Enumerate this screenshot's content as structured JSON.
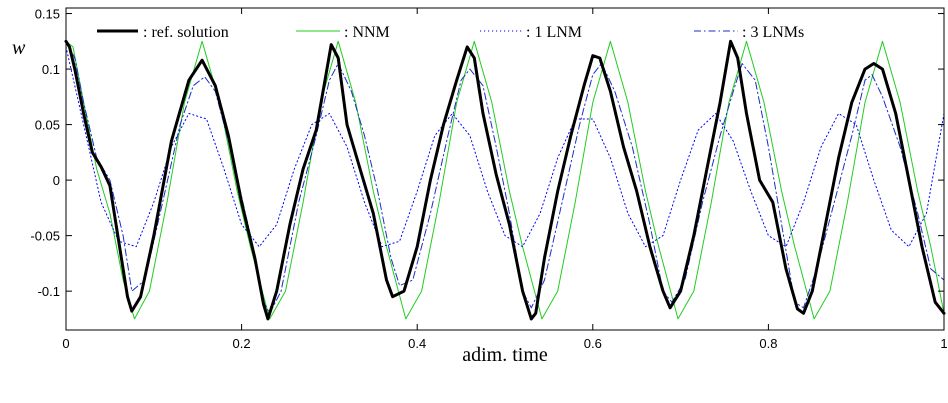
{
  "chart_data": {
    "type": "line",
    "xlabel": "adim. time",
    "ylabel": "w",
    "xlim": [
      0,
      1
    ],
    "ylim": [
      -0.135,
      0.155
    ],
    "x_ticks": [
      "0",
      "0.2",
      "0.4",
      "0.6",
      "0.8",
      "1"
    ],
    "y_ticks": [
      "0.15",
      "0.1",
      "0.05",
      "0",
      "-0.05",
      "-0.1"
    ],
    "grid": false,
    "legend_position": "top",
    "series": [
      {
        "name": ": ref. solution",
        "color": "#000000",
        "style": "solid-thick",
        "x": [
          0,
          0.004,
          0.01,
          0.02,
          0.03,
          0.04,
          0.05,
          0.06,
          0.07,
          0.075,
          0.085,
          0.1,
          0.12,
          0.14,
          0.155,
          0.17,
          0.185,
          0.2,
          0.215,
          0.225,
          0.23,
          0.24,
          0.255,
          0.27,
          0.285,
          0.295,
          0.302,
          0.31,
          0.32,
          0.335,
          0.35,
          0.365,
          0.372,
          0.385,
          0.4,
          0.415,
          0.43,
          0.445,
          0.457,
          0.465,
          0.475,
          0.49,
          0.505,
          0.52,
          0.53,
          0.535,
          0.545,
          0.56,
          0.575,
          0.59,
          0.6,
          0.608,
          0.62,
          0.635,
          0.65,
          0.665,
          0.68,
          0.688,
          0.7,
          0.715,
          0.73,
          0.745,
          0.757,
          0.765,
          0.775,
          0.79,
          0.805,
          0.82,
          0.833,
          0.84,
          0.85,
          0.865,
          0.88,
          0.895,
          0.91,
          0.92,
          0.93,
          0.945,
          0.96,
          0.975,
          0.99,
          1
        ],
        "y": [
          0.125,
          0.12,
          0.1,
          0.06,
          0.025,
          0.012,
          -0.005,
          -0.055,
          -0.105,
          -0.118,
          -0.105,
          -0.05,
          0.035,
          0.09,
          0.108,
          0.085,
          0.04,
          -0.02,
          -0.07,
          -0.112,
          -0.125,
          -0.1,
          -0.04,
          0.01,
          0.045,
          0.09,
          0.122,
          0.11,
          0.05,
          0.01,
          -0.03,
          -0.09,
          -0.105,
          -0.1,
          -0.06,
          0.0,
          0.05,
          0.09,
          0.12,
          0.11,
          0.06,
          0.005,
          -0.04,
          -0.1,
          -0.125,
          -0.12,
          -0.07,
          -0.01,
          0.04,
          0.085,
          0.112,
          0.11,
          0.08,
          0.03,
          -0.01,
          -0.06,
          -0.1,
          -0.115,
          -0.1,
          -0.05,
          0.01,
          0.07,
          0.125,
          0.11,
          0.06,
          0.0,
          -0.02,
          -0.08,
          -0.116,
          -0.12,
          -0.1,
          -0.04,
          0.02,
          0.07,
          0.1,
          0.105,
          0.1,
          0.06,
          0.0,
          -0.06,
          -0.11,
          -0.12
        ]
      },
      {
        "name": ": NNM",
        "color": "#22cc22",
        "style": "solid",
        "x": [
          0,
          0.008,
          0.02,
          0.035,
          0.05,
          0.065,
          0.078,
          0.095,
          0.115,
          0.135,
          0.155,
          0.175,
          0.195,
          0.21,
          0.232,
          0.25,
          0.27,
          0.29,
          0.31,
          0.33,
          0.35,
          0.365,
          0.387,
          0.405,
          0.425,
          0.445,
          0.465,
          0.485,
          0.505,
          0.52,
          0.542,
          0.56,
          0.58,
          0.6,
          0.62,
          0.64,
          0.66,
          0.675,
          0.697,
          0.715,
          0.735,
          0.755,
          0.775,
          0.795,
          0.815,
          0.83,
          0.852,
          0.87,
          0.89,
          0.91,
          0.93,
          0.95,
          0.97,
          0.985,
          1
        ],
        "y": [
          0.125,
          0.12,
          0.07,
          0.01,
          -0.03,
          -0.09,
          -0.125,
          -0.1,
          -0.02,
          0.07,
          0.125,
          0.07,
          -0.01,
          -0.06,
          -0.125,
          -0.1,
          -0.02,
          0.07,
          0.125,
          0.07,
          -0.01,
          -0.06,
          -0.125,
          -0.1,
          -0.02,
          0.07,
          0.125,
          0.07,
          -0.01,
          -0.06,
          -0.125,
          -0.1,
          -0.02,
          0.07,
          0.125,
          0.07,
          -0.01,
          -0.06,
          -0.125,
          -0.1,
          -0.02,
          0.07,
          0.125,
          0.07,
          -0.01,
          -0.06,
          -0.125,
          -0.1,
          -0.02,
          0.07,
          0.125,
          0.07,
          -0.01,
          -0.06,
          -0.12
        ]
      },
      {
        "name": ": 1 LNM",
        "color": "#0000ff",
        "style": "dotted",
        "x": [
          0,
          0.02,
          0.04,
          0.06,
          0.08,
          0.1,
          0.12,
          0.14,
          0.16,
          0.18,
          0.2,
          0.22,
          0.24,
          0.26,
          0.28,
          0.3,
          0.32,
          0.34,
          0.36,
          0.38,
          0.4,
          0.42,
          0.44,
          0.46,
          0.48,
          0.5,
          0.52,
          0.54,
          0.56,
          0.58,
          0.6,
          0.62,
          0.64,
          0.66,
          0.68,
          0.7,
          0.72,
          0.74,
          0.76,
          0.78,
          0.8,
          0.82,
          0.84,
          0.86,
          0.88,
          0.9,
          0.92,
          0.94,
          0.96,
          0.98,
          1
        ],
        "y": [
          0.12,
          0.05,
          -0.02,
          -0.055,
          -0.06,
          -0.02,
          0.03,
          0.06,
          0.055,
          0.01,
          -0.04,
          -0.06,
          -0.04,
          0.01,
          0.05,
          0.06,
          0.03,
          -0.02,
          -0.06,
          -0.055,
          -0.01,
          0.04,
          0.06,
          0.04,
          -0.01,
          -0.05,
          -0.06,
          -0.03,
          0.02,
          0.055,
          0.055,
          0.02,
          -0.03,
          -0.06,
          -0.05,
          0.0,
          0.045,
          0.06,
          0.035,
          -0.01,
          -0.05,
          -0.06,
          -0.02,
          0.03,
          0.06,
          0.05,
          0.0,
          -0.045,
          -0.06,
          -0.03,
          0.06
        ]
      },
      {
        "name": ": 3 LNMs",
        "color": "#1a2ecc",
        "style": "dashdot",
        "x": [
          0,
          0.01,
          0.02,
          0.035,
          0.05,
          0.065,
          0.075,
          0.09,
          0.11,
          0.13,
          0.145,
          0.158,
          0.17,
          0.19,
          0.21,
          0.225,
          0.232,
          0.245,
          0.265,
          0.285,
          0.3,
          0.31,
          0.325,
          0.34,
          0.355,
          0.37,
          0.38,
          0.395,
          0.415,
          0.435,
          0.45,
          0.46,
          0.475,
          0.49,
          0.505,
          0.52,
          0.53,
          0.545,
          0.565,
          0.585,
          0.6,
          0.61,
          0.625,
          0.645,
          0.665,
          0.68,
          0.69,
          0.705,
          0.725,
          0.745,
          0.76,
          0.77,
          0.785,
          0.8,
          0.815,
          0.83,
          0.84,
          0.855,
          0.875,
          0.895,
          0.91,
          0.918,
          0.93,
          0.95,
          0.97,
          0.985,
          1
        ],
        "y": [
          0.125,
          0.11,
          0.07,
          0.02,
          0.0,
          -0.05,
          -0.1,
          -0.09,
          -0.02,
          0.05,
          0.085,
          0.093,
          0.08,
          0.02,
          -0.05,
          -0.11,
          -0.12,
          -0.1,
          -0.02,
          0.04,
          0.09,
          0.105,
          0.08,
          0.04,
          -0.01,
          -0.07,
          -0.095,
          -0.09,
          -0.03,
          0.04,
          0.09,
          0.1,
          0.085,
          0.03,
          -0.03,
          -0.1,
          -0.115,
          -0.09,
          -0.02,
          0.05,
          0.095,
          0.105,
          0.08,
          0.03,
          -0.04,
          -0.1,
          -0.11,
          -0.09,
          -0.02,
          0.04,
          0.08,
          0.105,
          0.09,
          0.03,
          -0.04,
          -0.11,
          -0.115,
          -0.08,
          -0.02,
          0.04,
          0.09,
          0.095,
          0.075,
          0.03,
          -0.03,
          -0.08,
          -0.09
        ]
      }
    ]
  }
}
